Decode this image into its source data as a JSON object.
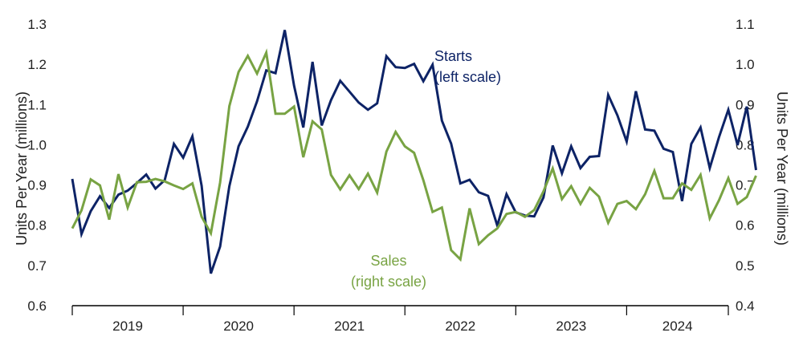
{
  "chart_data": {
    "type": "line",
    "title": "",
    "x_labels": [
      "2019",
      "2020",
      "2021",
      "2022",
      "2023",
      "2024"
    ],
    "x_range": [
      2019.0,
      2024.917
    ],
    "ylabel_left": "Units Per Year (millions)",
    "ylabel_right": "Units Per Year (millions)",
    "ylim_left": [
      0.6,
      1.3
    ],
    "ylim_right": [
      0.4,
      1.1
    ],
    "yticks_left": [
      "0.6",
      "0.7",
      "0.8",
      "0.9",
      "1.0",
      "1.1",
      "1.2",
      "1.3"
    ],
    "yticks_right": [
      "0.4",
      "0.5",
      "0.6",
      "0.7",
      "0.8",
      "0.9",
      "1.0",
      "1.1"
    ],
    "grid": false,
    "series": [
      {
        "name": "Starts",
        "axis": "left",
        "color": "#0d2366",
        "annotation": [
          "Starts",
          "(left scale)"
        ],
        "values": [
          0.915,
          0.778,
          0.835,
          0.872,
          0.843,
          0.876,
          0.886,
          0.905,
          0.926,
          0.891,
          0.912,
          1.002,
          0.968,
          1.021,
          0.898,
          0.68,
          0.747,
          0.897,
          0.996,
          1.045,
          1.108,
          1.185,
          1.178,
          1.285,
          1.147,
          1.043,
          1.206,
          1.048,
          1.111,
          1.159,
          1.132,
          1.105,
          1.087,
          1.103,
          1.22,
          1.193,
          1.191,
          1.201,
          1.158,
          1.199,
          1.06,
          1.003,
          0.904,
          0.913,
          0.882,
          0.873,
          0.799,
          0.877,
          0.832,
          0.824,
          0.822,
          0.869,
          0.998,
          0.929,
          0.996,
          0.942,
          0.97,
          0.972,
          1.124,
          1.073,
          1.008,
          1.133,
          1.038,
          1.035,
          0.99,
          0.982,
          0.86,
          1.002,
          1.043,
          0.942,
          1.019,
          1.087,
          0.999,
          1.095,
          0.937
        ]
      },
      {
        "name": "Sales",
        "axis": "right",
        "color": "#78a343",
        "annotation": [
          "Sales",
          "(right scale)"
        ],
        "values": [
          0.592,
          0.637,
          0.714,
          0.699,
          0.614,
          0.727,
          0.644,
          0.707,
          0.708,
          0.715,
          0.709,
          0.699,
          0.69,
          0.704,
          0.621,
          0.58,
          0.706,
          0.896,
          0.981,
          1.021,
          0.977,
          1.029,
          0.877,
          0.877,
          0.895,
          0.769,
          0.858,
          0.838,
          0.725,
          0.689,
          0.724,
          0.69,
          0.728,
          0.681,
          0.783,
          0.832,
          0.796,
          0.78,
          0.712,
          0.633,
          0.644,
          0.538,
          0.515,
          0.642,
          0.553,
          0.575,
          0.592,
          0.628,
          0.633,
          0.621,
          0.638,
          0.684,
          0.741,
          0.665,
          0.697,
          0.653,
          0.693,
          0.671,
          0.606,
          0.653,
          0.66,
          0.64,
          0.677,
          0.735,
          0.667,
          0.667,
          0.704,
          0.688,
          0.725,
          0.617,
          0.662,
          0.717,
          0.653,
          0.67,
          0.723
        ]
      }
    ]
  }
}
